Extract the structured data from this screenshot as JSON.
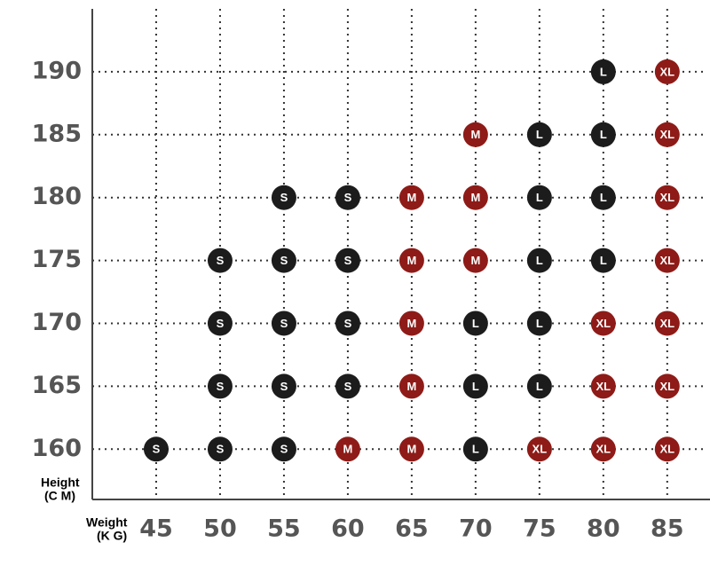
{
  "chart_data": {
    "type": "scatter",
    "xlabel_lines": [
      "Weight",
      "(K G)"
    ],
    "ylabel_lines": [
      "Height",
      "(C M)"
    ],
    "xlim": [
      40,
      88
    ],
    "ylim": [
      156,
      195
    ],
    "xticks": [
      45,
      50,
      55,
      60,
      65,
      70,
      75,
      80,
      85
    ],
    "yticks": [
      160,
      165,
      170,
      175,
      180,
      185,
      190
    ],
    "grid": true,
    "series": [
      {
        "name": "S",
        "color": "#1c1c1c",
        "x": [
          45,
          50,
          55,
          50,
          55,
          60,
          50,
          55,
          60,
          50,
          55,
          60,
          55,
          60
        ],
        "y": [
          160,
          160,
          160,
          165,
          165,
          165,
          170,
          170,
          170,
          175,
          175,
          175,
          180,
          180
        ]
      },
      {
        "name": "M",
        "color": "#8e1b17",
        "x": [
          60,
          65,
          65,
          65,
          65,
          70,
          65,
          70,
          70
        ],
        "y": [
          160,
          160,
          165,
          170,
          175,
          175,
          180,
          180,
          185
        ]
      },
      {
        "name": "L",
        "color": "#1c1c1c",
        "x": [
          70,
          70,
          75,
          70,
          75,
          75,
          80,
          75,
          80,
          75,
          80,
          80
        ],
        "y": [
          160,
          165,
          165,
          170,
          170,
          175,
          175,
          180,
          180,
          185,
          185,
          190
        ]
      },
      {
        "name": "XL",
        "color": "#8e1b17",
        "x": [
          75,
          80,
          85,
          80,
          85,
          80,
          85,
          85,
          85,
          85,
          85
        ],
        "y": [
          160,
          160,
          160,
          165,
          165,
          170,
          170,
          175,
          180,
          185,
          190
        ]
      }
    ]
  }
}
